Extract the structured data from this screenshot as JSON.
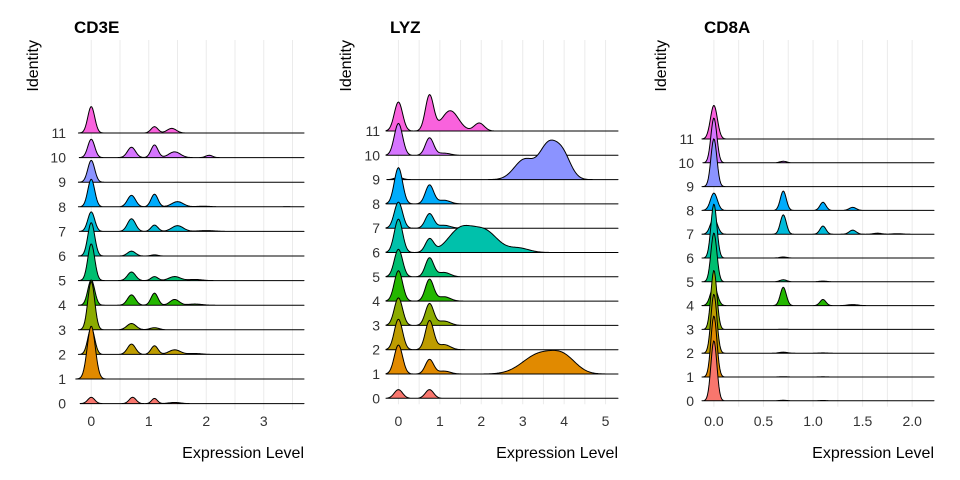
{
  "figure": {
    "identities": [
      "0",
      "1",
      "2",
      "3",
      "4",
      "5",
      "6",
      "7",
      "8",
      "9",
      "10",
      "11"
    ],
    "colors": [
      "#F8766D",
      "#E18A00",
      "#BE9C00",
      "#8CAB00",
      "#24B700",
      "#00BE70",
      "#00C1AB",
      "#00BBDA",
      "#00ACFC",
      "#8B93FF",
      "#D575FE",
      "#F962DD"
    ]
  },
  "chart_data": [
    {
      "type": "ridgeline",
      "title": "CD3E",
      "xlabel": "Expression Level",
      "ylabel": "Identity",
      "xlim": [
        -0.3,
        3.7
      ],
      "xticks": [
        "0",
        "1",
        "2",
        "3"
      ],
      "grid": true,
      "series": [
        {
          "name": "0",
          "peaks": [
            [
              0,
              0.55,
              0.06
            ],
            [
              0.72,
              0.55,
              0.06
            ],
            [
              1.1,
              0.45,
              0.05
            ],
            [
              1.45,
              0.1,
              0.1
            ]
          ]
        },
        {
          "name": "1",
          "peaks": [
            [
              0,
              4.6,
              0.07
            ]
          ]
        },
        {
          "name": "2",
          "peaks": [
            [
              0,
              2.3,
              0.06
            ],
            [
              0.7,
              0.9,
              0.07
            ],
            [
              1.1,
              0.75,
              0.06
            ],
            [
              1.45,
              0.4,
              0.1
            ],
            [
              1.8,
              0.08,
              0.12
            ]
          ]
        },
        {
          "name": "3",
          "peaks": [
            [
              0,
              4.2,
              0.06
            ],
            [
              0.7,
              0.55,
              0.08
            ],
            [
              1.1,
              0.18,
              0.08
            ]
          ]
        },
        {
          "name": "4",
          "peaks": [
            [
              0,
              2.2,
              0.06
            ],
            [
              0.7,
              0.9,
              0.07
            ],
            [
              1.1,
              1.05,
              0.06
            ],
            [
              1.45,
              0.5,
              0.08
            ],
            [
              1.8,
              0.1,
              0.12
            ]
          ]
        },
        {
          "name": "5",
          "peaks": [
            [
              0,
              3.2,
              0.06
            ],
            [
              0.7,
              0.75,
              0.07
            ],
            [
              1.1,
              0.35,
              0.06
            ],
            [
              1.45,
              0.35,
              0.1
            ],
            [
              1.8,
              0.1,
              0.12
            ]
          ]
        },
        {
          "name": "6",
          "peaks": [
            [
              0,
              2.9,
              0.06
            ],
            [
              0.7,
              0.42,
              0.07
            ],
            [
              1.1,
              0.1,
              0.06
            ]
          ]
        },
        {
          "name": "7",
          "peaks": [
            [
              0,
              1.7,
              0.06
            ],
            [
              0.7,
              1.1,
              0.07
            ],
            [
              1.1,
              0.55,
              0.06
            ],
            [
              1.5,
              0.5,
              0.1
            ],
            [
              2.0,
              0.07,
              0.15
            ]
          ]
        },
        {
          "name": "8",
          "peaks": [
            [
              0,
              2.4,
              0.06
            ],
            [
              0.7,
              1.0,
              0.07
            ],
            [
              1.1,
              1.1,
              0.06
            ],
            [
              1.5,
              0.45,
              0.1
            ],
            [
              1.95,
              0.05,
              0.12
            ],
            [
              3.4,
              0.02,
              0.05
            ]
          ]
        },
        {
          "name": "9",
          "peaks": [
            [
              0,
              1.9,
              0.06
            ]
          ]
        },
        {
          "name": "10",
          "peaks": [
            [
              0,
              1.6,
              0.06
            ],
            [
              0.7,
              0.9,
              0.07
            ],
            [
              1.1,
              1.1,
              0.06
            ],
            [
              1.45,
              0.5,
              0.1
            ],
            [
              2.05,
              0.2,
              0.06
            ]
          ]
        },
        {
          "name": "11",
          "peaks": [
            [
              0,
              2.3,
              0.06
            ],
            [
              1.1,
              0.55,
              0.06
            ],
            [
              1.4,
              0.4,
              0.08
            ]
          ]
        }
      ]
    },
    {
      "type": "ridgeline",
      "title": "LYZ",
      "xlabel": "Expression Level",
      "ylabel": "Identity",
      "xlim": [
        -0.3,
        5.3
      ],
      "xticks": [
        "0",
        "1",
        "2",
        "3",
        "4",
        "5"
      ],
      "grid": true,
      "series": [
        {
          "name": "0",
          "peaks": [
            [
              0,
              0.6,
              0.1
            ],
            [
              0.75,
              0.6,
              0.1
            ]
          ]
        },
        {
          "name": "1",
          "peaks": [
            [
              0,
              2.0,
              0.1
            ],
            [
              0.75,
              1.0,
              0.1
            ],
            [
              1.1,
              0.2,
              0.15
            ],
            [
              3.4,
              1.35,
              0.4
            ],
            [
              4.0,
              1.0,
              0.3
            ]
          ]
        },
        {
          "name": "2",
          "peaks": [
            [
              0,
              2.1,
              0.1
            ],
            [
              0.75,
              2.0,
              0.1
            ],
            [
              1.1,
              0.35,
              0.15
            ]
          ]
        },
        {
          "name": "3",
          "peaks": [
            [
              0,
              1.9,
              0.1
            ],
            [
              0.75,
              1.5,
              0.1
            ],
            [
              1.1,
              0.3,
              0.15
            ]
          ]
        },
        {
          "name": "4",
          "peaks": [
            [
              0,
              2.1,
              0.1
            ],
            [
              0.75,
              1.5,
              0.1
            ],
            [
              1.1,
              0.3,
              0.15
            ]
          ]
        },
        {
          "name": "5",
          "peaks": [
            [
              0,
              1.9,
              0.1
            ],
            [
              0.75,
              1.3,
              0.1
            ],
            [
              1.1,
              0.3,
              0.15
            ]
          ]
        },
        {
          "name": "6",
          "peaks": [
            [
              0,
              2.3,
              0.1
            ],
            [
              0.75,
              0.9,
              0.1
            ],
            [
              1.5,
              1.6,
              0.3
            ],
            [
              2.1,
              1.4,
              0.3
            ],
            [
              2.9,
              0.3,
              0.25
            ]
          ]
        },
        {
          "name": "7",
          "peaks": [
            [
              0,
              1.8,
              0.1
            ],
            [
              0.75,
              1.0,
              0.1
            ],
            [
              1.1,
              0.2,
              0.15
            ]
          ]
        },
        {
          "name": "8",
          "peaks": [
            [
              0,
              2.5,
              0.1
            ],
            [
              0.75,
              1.3,
              0.1
            ],
            [
              1.1,
              0.25,
              0.15
            ]
          ]
        },
        {
          "name": "9",
          "peaks": [
            [
              0,
              0.15,
              0.1
            ],
            [
              3.05,
              1.4,
              0.25
            ],
            [
              3.6,
              2.1,
              0.2
            ],
            [
              3.95,
              1.8,
              0.2
            ]
          ]
        },
        {
          "name": "10",
          "peaks": [
            [
              0,
              2.2,
              0.1
            ],
            [
              0.75,
              1.2,
              0.1
            ],
            [
              1.1,
              0.15,
              0.15
            ]
          ]
        },
        {
          "name": "11",
          "peaks": [
            [
              0,
              2.0,
              0.1
            ],
            [
              0.75,
              2.45,
              0.1
            ],
            [
              1.25,
              1.4,
              0.2
            ],
            [
              1.95,
              0.55,
              0.12
            ]
          ]
        }
      ]
    },
    {
      "type": "ridgeline",
      "title": "CD8A",
      "xlabel": "Expression Level",
      "ylabel": "Identity",
      "xlim": [
        -0.12,
        2.22
      ],
      "xticks": [
        "0.0",
        "0.5",
        "1.0",
        "1.5",
        "2.0"
      ],
      "xtick_values": [
        0,
        0.5,
        1.0,
        1.5,
        2.0
      ],
      "grid": true,
      "series": [
        {
          "name": "0",
          "peaks": [
            [
              0,
              5.9,
              0.03
            ],
            [
              0.7,
              0.05,
              0.04
            ],
            [
              1.1,
              0.03,
              0.04
            ]
          ]
        },
        {
          "name": "1",
          "peaks": [
            [
              0,
              6.0,
              0.03
            ],
            [
              0.7,
              0.03,
              0.04
            ],
            [
              1.1,
              0.02,
              0.04
            ]
          ]
        },
        {
          "name": "2",
          "peaks": [
            [
              0,
              5.8,
              0.03
            ],
            [
              0.7,
              0.1,
              0.04
            ],
            [
              1.1,
              0.03,
              0.04
            ]
          ]
        },
        {
          "name": "3",
          "peaks": [
            [
              0,
              5.8,
              0.03
            ],
            [
              0.7,
              0.02,
              0.04
            ]
          ]
        },
        {
          "name": "4",
          "peaks": [
            [
              0,
              1.9,
              0.035
            ],
            [
              0.7,
              1.8,
              0.03
            ],
            [
              1.1,
              0.6,
              0.03
            ],
            [
              1.4,
              0.1,
              0.05
            ]
          ]
        },
        {
          "name": "5",
          "peaks": [
            [
              0,
              4.8,
              0.03
            ],
            [
              0.7,
              0.2,
              0.035
            ],
            [
              1.1,
              0.07,
              0.04
            ]
          ]
        },
        {
          "name": "6",
          "peaks": [
            [
              0,
              5.3,
              0.03
            ],
            [
              0.7,
              0.1,
              0.035
            ]
          ]
        },
        {
          "name": "7",
          "peaks": [
            [
              0,
              1.6,
              0.035
            ],
            [
              0.7,
              1.9,
              0.03
            ],
            [
              1.1,
              0.8,
              0.03
            ],
            [
              1.4,
              0.4,
              0.035
            ],
            [
              1.65,
              0.1,
              0.04
            ],
            [
              1.85,
              0.05,
              0.05
            ]
          ]
        },
        {
          "name": "8",
          "peaks": [
            [
              0,
              1.7,
              0.035
            ],
            [
              0.7,
              1.9,
              0.03
            ],
            [
              1.1,
              0.8,
              0.03
            ],
            [
              1.4,
              0.3,
              0.035
            ]
          ]
        },
        {
          "name": "9",
          "peaks": [
            [
              0,
              4.7,
              0.03
            ]
          ]
        },
        {
          "name": "10",
          "peaks": [
            [
              0,
              4.4,
              0.03
            ],
            [
              0.7,
              0.15,
              0.035
            ]
          ]
        },
        {
          "name": "11",
          "peaks": [
            [
              0,
              3.3,
              0.035
            ]
          ]
        }
      ]
    }
  ]
}
